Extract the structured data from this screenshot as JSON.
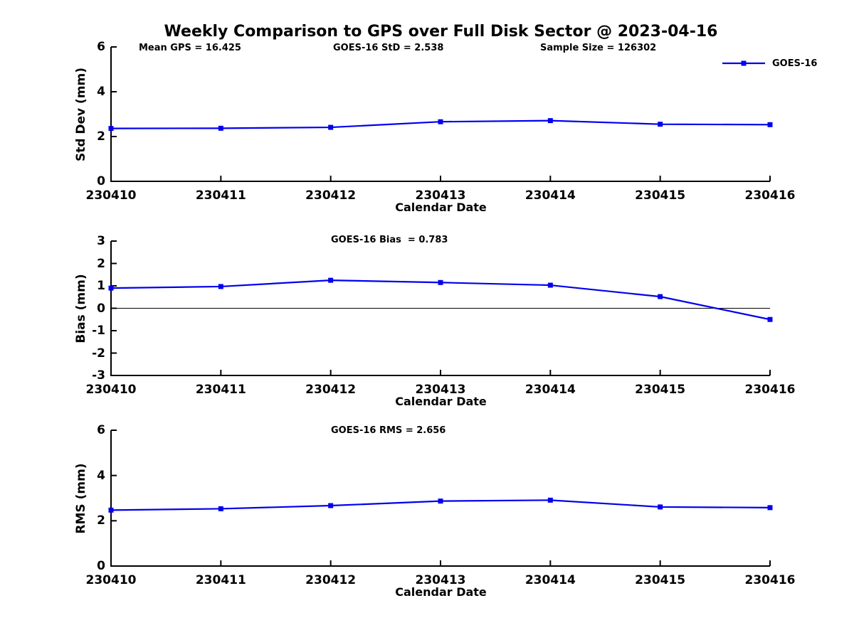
{
  "title": "Weekly Comparison to GPS over Full Disk Sector @ 2023-04-16",
  "colors": {
    "series": "#0000ee",
    "axis": "#000000",
    "text": "#000000"
  },
  "legend": {
    "label": "GOES-16",
    "position": "top-right"
  },
  "header_stats": [
    {
      "text": "Mean GPS = 16.425"
    },
    {
      "text": "GOES-16 StD = 2.538"
    },
    {
      "text": "Sample Size = 126302"
    }
  ],
  "chart_data": [
    {
      "type": "line",
      "name": "std-dev",
      "xlabel": "Calendar Date",
      "ylabel": "Std Dev (mm)",
      "categories": [
        "230410",
        "230411",
        "230412",
        "230413",
        "230414",
        "230415",
        "230416"
      ],
      "series": [
        {
          "name": "GOES-16",
          "values": [
            2.36,
            2.37,
            2.41,
            2.66,
            2.71,
            2.55,
            2.53
          ]
        }
      ],
      "ylim": [
        0,
        6
      ],
      "yticks": [
        0,
        2,
        4,
        6
      ],
      "grid": false,
      "zero_line": false,
      "legend_position": "top-right",
      "annotation": ""
    },
    {
      "type": "line",
      "name": "bias",
      "xlabel": "Calendar Date",
      "ylabel": "Bias (mm)",
      "categories": [
        "230410",
        "230411",
        "230412",
        "230413",
        "230414",
        "230415",
        "230416"
      ],
      "series": [
        {
          "name": "GOES-16",
          "values": [
            0.9,
            0.97,
            1.25,
            1.15,
            1.03,
            0.52,
            -0.5
          ]
        }
      ],
      "ylim": [
        -3,
        3
      ],
      "yticks": [
        -3,
        -2,
        -1,
        0,
        1,
        2,
        3
      ],
      "grid": false,
      "zero_line": true,
      "annotation": "GOES-16 Bias  = 0.783"
    },
    {
      "type": "line",
      "name": "rms",
      "xlabel": "Calendar Date",
      "ylabel": "RMS (mm)",
      "categories": [
        "230410",
        "230411",
        "230412",
        "230413",
        "230414",
        "230415",
        "230416"
      ],
      "series": [
        {
          "name": "GOES-16",
          "values": [
            2.47,
            2.53,
            2.67,
            2.87,
            2.91,
            2.61,
            2.58
          ]
        }
      ],
      "ylim": [
        0,
        6
      ],
      "yticks": [
        0,
        2,
        4,
        6
      ],
      "grid": false,
      "zero_line": false,
      "annotation": "GOES-16 RMS = 2.656"
    }
  ]
}
